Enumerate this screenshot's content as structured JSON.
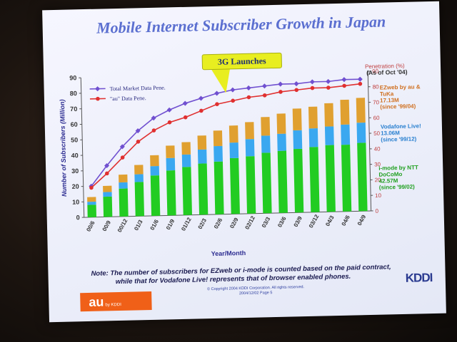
{
  "footer": {
    "note_line1": "Note: The number of subscribers for EZweb or i-mode is counted based on the paid contract,",
    "note_line2": "while that for Vodafone Live! represents that of browser enabled phones.",
    "copyright_line1": "© Copyright 2004 KDDI Corporation. All rights reserved.",
    "copyright_line2": "2004/12/02 Page 5",
    "au_logo": "au",
    "au_logo_sub": "by KDDI",
    "kddi_logo": "KDDI"
  },
  "chart_data": {
    "type": "bar",
    "stacked": true,
    "title": "Mobile Internet Subscriber Growth in Japan",
    "xlabel": "Year/Month",
    "ylabel": "Number of Subscribers (Million)",
    "y2label": "Penetration (%)",
    "as_of": "(As of Oct '04)",
    "ylim": [
      0,
      90
    ],
    "y2lim": [
      0,
      90
    ],
    "yticks": [
      0,
      10,
      20,
      30,
      40,
      50,
      60,
      70,
      80,
      90
    ],
    "categories": [
      "00/6",
      "00/9",
      "00/12",
      "01/3",
      "01/6",
      "01/9",
      "01/12",
      "02/3",
      "02/6",
      "02/9",
      "02/12",
      "03/3",
      "03/6",
      "03/9",
      "03/12",
      "04/3",
      "04/6",
      "04/9"
    ],
    "series": [
      {
        "name": "i-mode",
        "color": "#22cc22",
        "values": [
          8,
          13,
          18,
          22,
          26,
          29,
          31,
          33,
          34,
          36,
          37,
          39,
          40,
          41,
          42,
          43,
          43,
          44
        ]
      },
      {
        "name": "Vodafone Live!",
        "color": "#3aa8f0",
        "values": [
          2,
          3,
          4,
          5,
          6,
          8,
          8,
          9,
          10,
          10,
          11,
          11,
          11,
          12,
          12,
          12,
          13,
          13
        ]
      },
      {
        "name": "EZweb",
        "color": "#e0a030",
        "values": [
          3,
          4,
          5,
          6,
          7,
          8,
          8,
          9,
          10,
          11,
          11,
          12,
          13,
          14,
          14,
          15,
          16,
          16
        ]
      }
    ],
    "lines": [
      {
        "name": "Total Market Data Pene.",
        "color": "#7050d0",
        "values": [
          20,
          33,
          45,
          55,
          63,
          68,
          72,
          75,
          78,
          80,
          81,
          82,
          83,
          83,
          84,
          84,
          85,
          85
        ]
      },
      {
        "name": "\"au\" Data Pene.",
        "color": "#e03030",
        "values": [
          19,
          28,
          38,
          48,
          55,
          60,
          63,
          67,
          71,
          73,
          75,
          76,
          78,
          79,
          80,
          80,
          81,
          82
        ]
      }
    ],
    "annotations": {
      "callout": "3G Launches"
    },
    "series_labels": {
      "ezweb": {
        "name": "EZweb by au & TuKa",
        "value": "17.13M",
        "since": "(since '99/04)"
      },
      "vodafone": {
        "name": "Vodafone Live!",
        "value": "13.06M",
        "since": "(since '99/12)"
      },
      "imode": {
        "name": "i-mode by NTT DoCoMo",
        "value": "42.57M",
        "since": "(since '99/02)"
      }
    },
    "legend": "top-left",
    "grid": false
  }
}
